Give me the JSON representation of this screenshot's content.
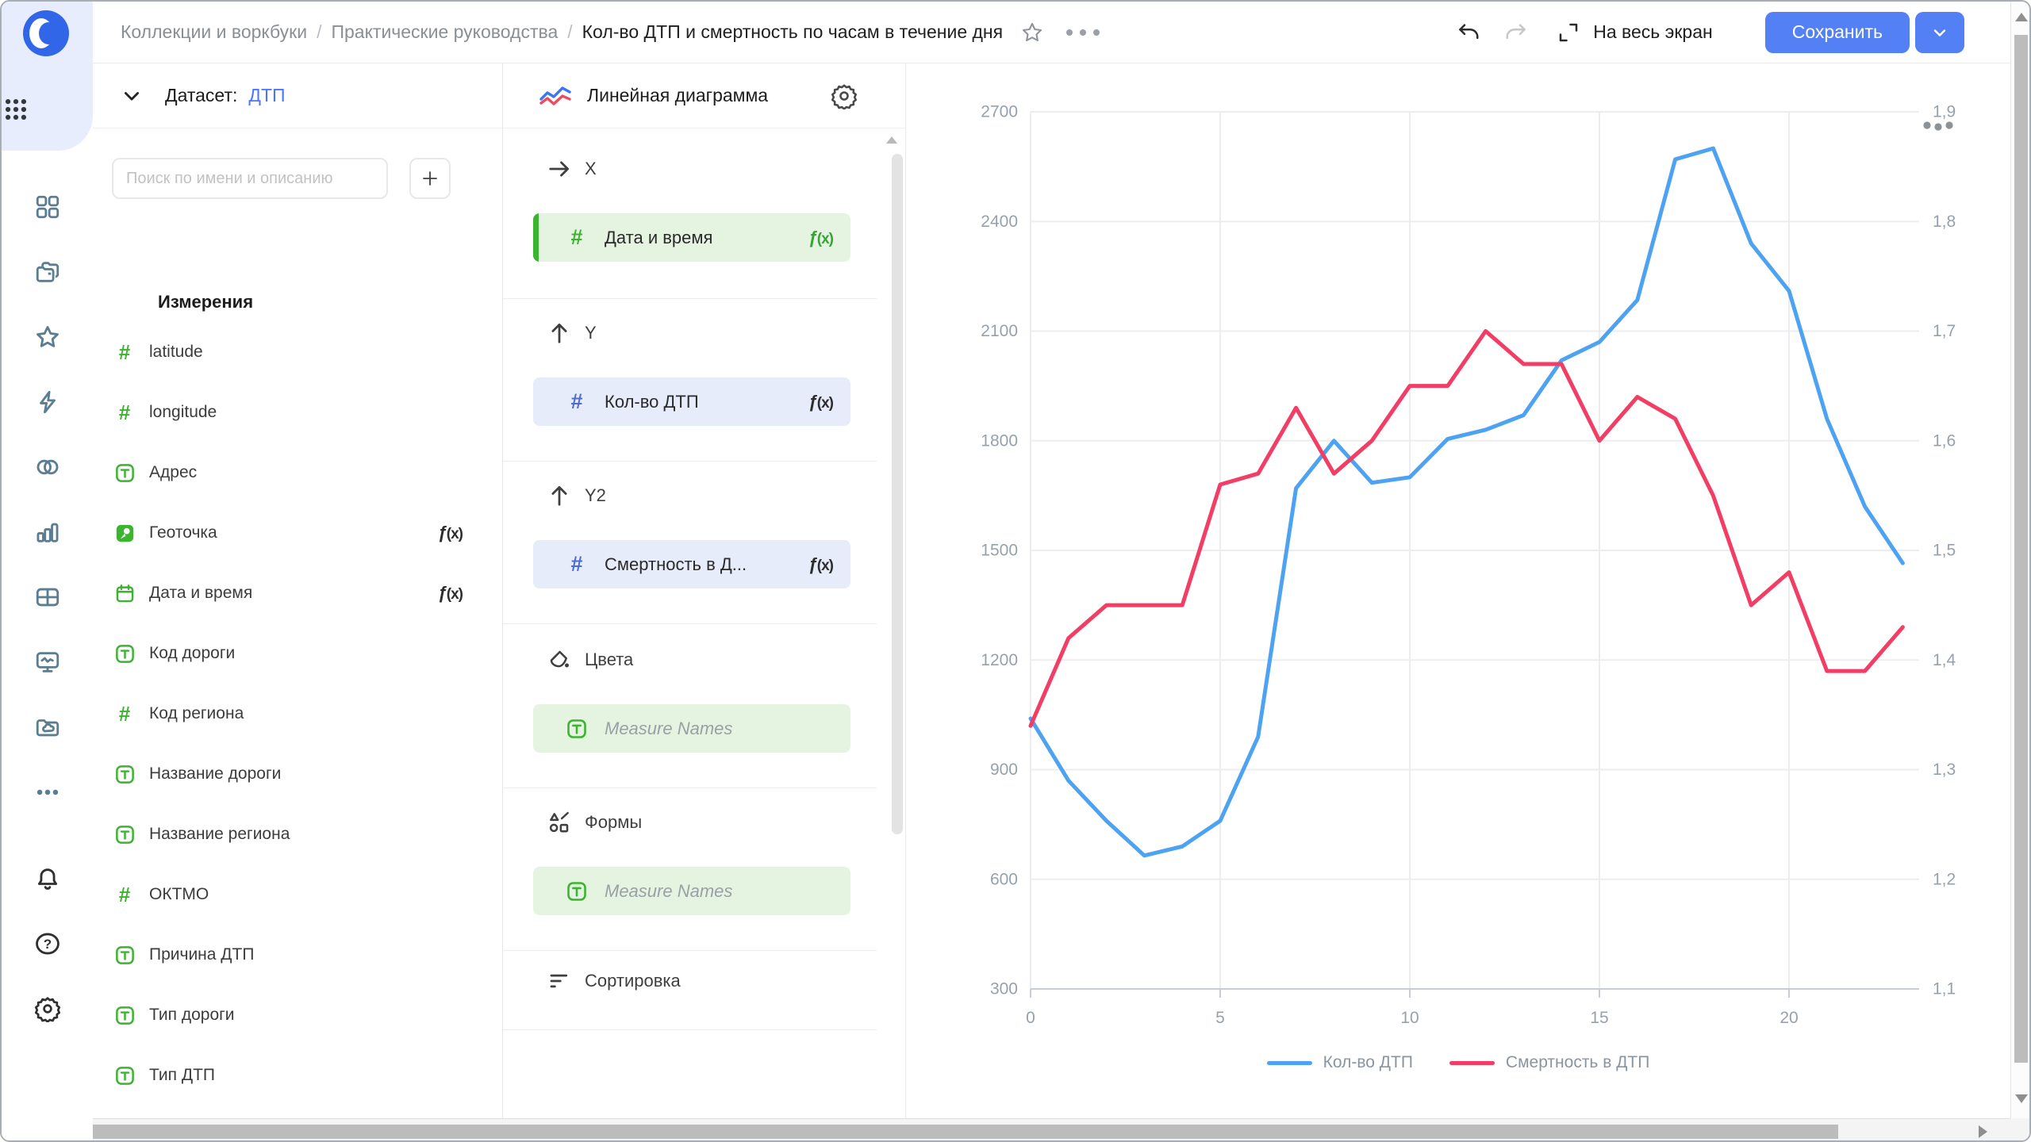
{
  "topbar": {
    "breadcrumb": [
      "Коллекции и воркбуки",
      "Практические руководства"
    ],
    "title": "Кол-во ДТП и смертность по часам в течение дня",
    "fullscreen_label": "На весь экран",
    "save_label": "Сохранить"
  },
  "sidebar": {
    "nav_items": [
      {
        "name": "workbooks",
        "icon": "squares"
      },
      {
        "name": "collections",
        "icon": "folders"
      },
      {
        "name": "favorites",
        "icon": "star"
      },
      {
        "name": "quick-actions",
        "icon": "bolt"
      },
      {
        "name": "connections",
        "icon": "circles"
      },
      {
        "name": "charts",
        "icon": "barchart"
      },
      {
        "name": "datasets",
        "icon": "table"
      },
      {
        "name": "dashboards",
        "icon": "monitor"
      },
      {
        "name": "storage",
        "icon": "foldercloud"
      },
      {
        "name": "more",
        "icon": "dots"
      }
    ],
    "bottom_items": [
      {
        "name": "notifications",
        "icon": "bell"
      },
      {
        "name": "help",
        "icon": "question"
      },
      {
        "name": "settings",
        "icon": "gear"
      }
    ]
  },
  "dataset_panel": {
    "header_label": "Датасет:",
    "dataset_name": "ДТП",
    "search_placeholder": "Поиск по имени и описанию",
    "add_button": "+",
    "section_title": "Измерения",
    "fields": [
      {
        "label": "latitude",
        "icon": "hash"
      },
      {
        "label": "longitude",
        "icon": "hash"
      },
      {
        "label": "Адрес",
        "icon": "text"
      },
      {
        "label": "Геоточка",
        "icon": "geopoint",
        "fx": true
      },
      {
        "label": "Дата и время",
        "icon": "calendar",
        "fx": true
      },
      {
        "label": "Код дороги",
        "icon": "text"
      },
      {
        "label": "Код региона",
        "icon": "hash"
      },
      {
        "label": "Название дороги",
        "icon": "text"
      },
      {
        "label": "Название региона",
        "icon": "text"
      },
      {
        "label": "ОКТМО",
        "icon": "hash"
      },
      {
        "label": "Причина ДТП",
        "icon": "text"
      },
      {
        "label": "Тип дороги",
        "icon": "text"
      },
      {
        "label": "Тип ДТП",
        "icon": "text"
      },
      {
        "label": "Measure Names",
        "icon": "text",
        "muted": true
      }
    ]
  },
  "config_panel": {
    "chart_type": "Линейная диаграмма",
    "sections": {
      "x_label": "X",
      "y_label": "Y",
      "y2_label": "Y2",
      "colors_label": "Цвета",
      "shapes_label": "Формы",
      "sort_label": "Сортировка"
    },
    "pills": {
      "x": {
        "label": "Дата и время",
        "fx": "ƒ(x)"
      },
      "y": {
        "label": "Кол-во ДТП",
        "fx": "ƒ(x)"
      },
      "y2": {
        "label": "Смертность в Д...",
        "fx": "ƒ(x)"
      },
      "colors": {
        "label": "Measure Names"
      },
      "shapes": {
        "label": "Measure Names"
      }
    },
    "fx_glyph": "ƒ(x)"
  },
  "chart_data": {
    "type": "line",
    "title": "",
    "xlabel": "",
    "ylabel": "",
    "x": [
      0,
      1,
      2,
      3,
      4,
      5,
      6,
      7,
      8,
      9,
      10,
      11,
      12,
      13,
      14,
      15,
      16,
      17,
      18,
      19,
      20,
      21,
      22,
      23
    ],
    "x_tick_labels": [
      "0",
      "5",
      "10",
      "15",
      "20"
    ],
    "x_ticks_at": [
      0,
      5,
      10,
      15,
      20
    ],
    "y_left": {
      "min": 300,
      "max": 2700,
      "ticks": [
        300,
        600,
        900,
        1200,
        1500,
        1800,
        2100,
        2400,
        2700
      ]
    },
    "y_right": {
      "min": 1.1,
      "max": 1.9,
      "tick_labels": [
        "1,1",
        "1,2",
        "1,3",
        "1,4",
        "1,5",
        "1,6",
        "1,7",
        "1,8",
        "1,9"
      ]
    },
    "grid": true,
    "legend_position": "bottom",
    "series": [
      {
        "name": "Кол-во ДТП",
        "axis": "left",
        "color": "#4da2f1",
        "values": [
          1040,
          870,
          760,
          665,
          690,
          760,
          990,
          1670,
          1800,
          1685,
          1700,
          1805,
          1830,
          1870,
          2020,
          2070,
          2185,
          2570,
          2600,
          2340,
          2210,
          1860,
          1620,
          1465
        ]
      },
      {
        "name": "Смертность в ДТП",
        "axis": "right",
        "color": "#f23d64",
        "values": [
          1.34,
          1.42,
          1.45,
          1.45,
          1.45,
          1.56,
          1.57,
          1.63,
          1.57,
          1.6,
          1.65,
          1.65,
          1.7,
          1.67,
          1.67,
          1.6,
          1.64,
          1.62,
          1.55,
          1.45,
          1.48,
          1.39,
          1.39,
          1.43
        ]
      }
    ],
    "colors": {
      "accent_blue": "#5380f5",
      "series_blue": "#4da2f1",
      "series_red": "#f23d64",
      "dimension_green": "#3bb42f",
      "measure_blue": "#4e6bd4",
      "axis_label": "#97a1ab",
      "gridline": "#ebedf0"
    }
  }
}
